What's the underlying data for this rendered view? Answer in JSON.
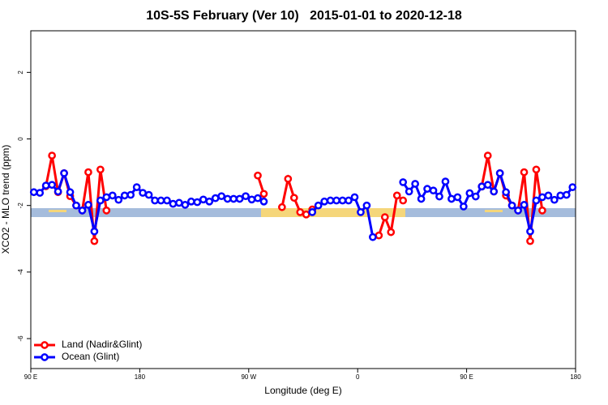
{
  "chart_data": {
    "type": "line",
    "title": "10S-5S February (Ver 10)   2015-01-01 to 2020-12-18",
    "xlabel": "Longitude (deg E)",
    "ylabel": "XCO2 - MLO trend (ppm)",
    "x": [
      92.5,
      97.5,
      102.5,
      107.5,
      112.5,
      117.5,
      122.5,
      127.5,
      132.5,
      137.5,
      142.5,
      147.5,
      152.5,
      157.5,
      162.5,
      167.5,
      172.5,
      177.5,
      182.5,
      187.5,
      192.5,
      197.5,
      202.5,
      207.5,
      212.5,
      217.5,
      222.5,
      227.5,
      232.5,
      237.5,
      242.5,
      247.5,
      252.5,
      257.5,
      262.5,
      267.5,
      272.5,
      277.5,
      282.5,
      287.5,
      292.5,
      297.5,
      302.5,
      307.5,
      312.5,
      317.5,
      322.5,
      327.5,
      332.5,
      337.5,
      342.5,
      347.5,
      352.5,
      357.5,
      362.5,
      367.5,
      372.5,
      377.5,
      382.5,
      387.5,
      392.5,
      397.5,
      402.5,
      407.5,
      412.5,
      417.5,
      422.5,
      427.5,
      432.5,
      437.5,
      442.5,
      447.5,
      452.5,
      457.5,
      462.5,
      467.5,
      472.5,
      477.5,
      482.5,
      487.5,
      492.5,
      497.5,
      502.5,
      507.5,
      512.5,
      517.5,
      522.5,
      527.5,
      532.5,
      537.5
    ],
    "series": [
      {
        "name": "Land (Nadir&Glint)",
        "color": "#ff0000",
        "values": [
          null,
          null,
          -1.42,
          -0.5,
          -1.6,
          -1.03,
          -1.72,
          -2.0,
          -2.15,
          -1.0,
          -3.07,
          -0.92,
          -2.15,
          null,
          null,
          null,
          null,
          null,
          null,
          null,
          null,
          null,
          null,
          null,
          null,
          null,
          null,
          null,
          null,
          null,
          null,
          null,
          null,
          null,
          null,
          null,
          null,
          -1.1,
          -1.65,
          null,
          null,
          -2.05,
          -1.2,
          -1.77,
          -2.2,
          -2.27,
          -2.12,
          null,
          null,
          null,
          null,
          null,
          null,
          null,
          null,
          null,
          null,
          -2.9,
          -2.35,
          -2.8,
          -1.7,
          -1.85,
          null,
          null,
          null,
          null,
          null,
          null,
          null,
          null,
          null,
          null,
          null,
          null,
          -1.43,
          -0.5,
          -1.58,
          -1.03,
          -1.7,
          -2.0,
          -2.15,
          -1.0,
          -3.07,
          -0.92,
          -2.15,
          null,
          null,
          null,
          null,
          null
        ]
      },
      {
        "name": "Ocean (Glint)",
        "color": "#0000ff",
        "values": [
          -1.6,
          -1.62,
          -1.4,
          -1.38,
          -1.58,
          -1.03,
          -1.6,
          -2.0,
          -2.15,
          -1.98,
          -2.78,
          -1.85,
          -1.75,
          -1.7,
          -1.83,
          -1.7,
          -1.68,
          -1.45,
          -1.62,
          -1.68,
          -1.85,
          -1.85,
          -1.85,
          -1.95,
          -1.92,
          -1.98,
          -1.88,
          -1.9,
          -1.82,
          -1.88,
          -1.78,
          -1.72,
          -1.8,
          -1.8,
          -1.8,
          -1.72,
          -1.82,
          -1.78,
          -1.88,
          null,
          null,
          null,
          null,
          null,
          null,
          null,
          -2.2,
          -2.0,
          -1.88,
          -1.85,
          -1.85,
          -1.85,
          -1.85,
          -1.75,
          -2.2,
          -2.0,
          -2.95,
          null,
          null,
          null,
          null,
          -1.3,
          -1.58,
          -1.35,
          -1.8,
          -1.5,
          -1.55,
          -1.73,
          -1.28,
          -1.8,
          -1.75,
          -2.03,
          -1.63,
          -1.73,
          -1.43,
          -1.38,
          -1.58,
          -1.03,
          -1.6,
          -2.0,
          -2.15,
          -1.98,
          -2.78,
          -1.85,
          -1.75,
          -1.7,
          -1.83,
          -1.7,
          -1.68,
          -1.45
        ]
      }
    ],
    "xlim": [
      90,
      540
    ],
    "xticks": [
      {
        "value": 90,
        "label": "90 E"
      },
      180,
      {
        "value": 270,
        "label": "90 W"
      },
      {
        "value": 360,
        "label": "0"
      },
      {
        "value": 450,
        "label": "90 E"
      },
      {
        "value": 540,
        "label": "180"
      }
    ],
    "ylim": [
      -6.9,
      3.25
    ],
    "yticks": [
      -6,
      -4,
      -2,
      0,
      2
    ],
    "legend": "bottomleft",
    "grid": false
  }
}
